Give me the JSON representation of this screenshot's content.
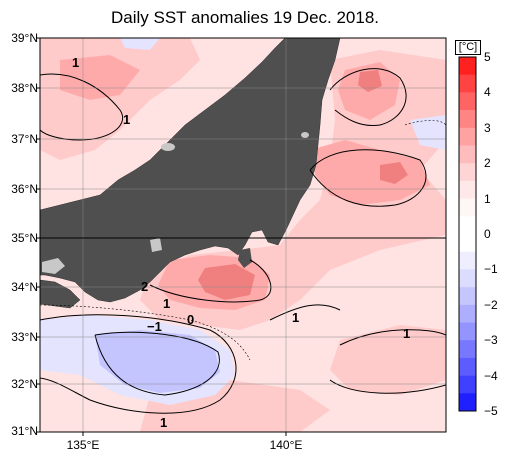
{
  "title": "Daily SST anomalies 19 Dec. 2018.",
  "colorbar": {
    "unit": "[°C]",
    "ticks": [
      "5",
      "4",
      "3",
      "2",
      "1",
      "0",
      "−1",
      "−2",
      "−3",
      "−4",
      "−5"
    ],
    "colors_top_to_bottom": [
      "#ff2020",
      "#ff4242",
      "#ff6464",
      "#ff8484",
      "#ffa2a2",
      "#ffbcbc",
      "#ffd4d4",
      "#ffe8e8",
      "#fff6f6",
      "#ffffff",
      "#ffffff",
      "#eeeeff",
      "#dcdcff",
      "#c6c6ff",
      "#aeaeff",
      "#9494ff",
      "#7878ff",
      "#5c5cff",
      "#4040ff",
      "#2020ff"
    ]
  },
  "axes": {
    "lat_labels": [
      "39°N",
      "38°N",
      "37°N",
      "36°N",
      "35°N",
      "34°N",
      "33°N",
      "32°N",
      "31°N"
    ],
    "lon_labels": [
      "135°E",
      "140°E"
    ],
    "lat_range": [
      31,
      39
    ],
    "lon_range": [
      134,
      142
    ]
  },
  "contour_labels": [
    "1",
    "1",
    "2",
    "1",
    "0",
    "−1",
    "1",
    "1",
    "1"
  ],
  "colors": {
    "land": "#4f4f4f",
    "lake": "#c8c8c8",
    "ocean_base": "#ffe2e2",
    "warm_light": "#ffcaca",
    "warm_mid": "#ffaaaa",
    "warm_strong": "#f08080",
    "cool_light": "#e4e4ff",
    "cool_mid": "#c4c4ff"
  }
}
